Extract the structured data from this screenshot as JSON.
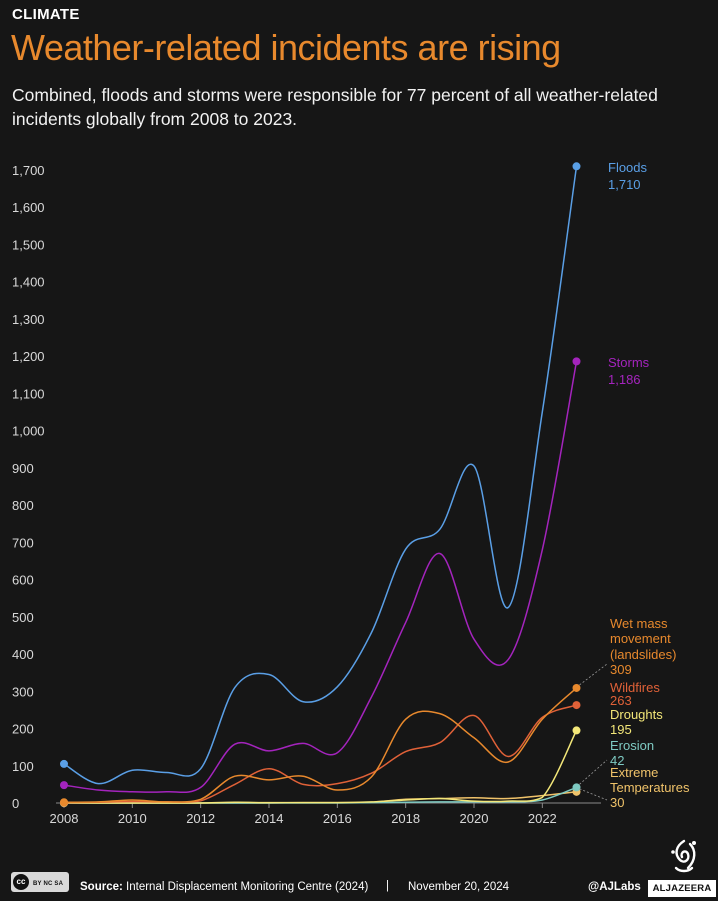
{
  "header": {
    "kicker": "CLIMATE",
    "title": "Weather-related incidents are rising",
    "subtitle": "Combined, floods and storms were responsible for 77 percent of all weather-related incidents globally from 2008 to 2023."
  },
  "chart_data": {
    "type": "line",
    "x": [
      2008,
      2009,
      2010,
      2011,
      2012,
      2013,
      2014,
      2015,
      2016,
      2017,
      2018,
      2019,
      2020,
      2021,
      2022,
      2023
    ],
    "xlim": [
      2008,
      2023.6
    ],
    "ylim": [
      0,
      1700
    ],
    "y_ticks": [
      0,
      100,
      200,
      300,
      400,
      500,
      600,
      700,
      800,
      900,
      1000,
      1100,
      1200,
      1300,
      1400,
      1500,
      1600,
      1700
    ],
    "y_tick_labels": [
      "0",
      "100",
      "200",
      "300",
      "400",
      "500",
      "600",
      "700",
      "800",
      "900",
      "1,000",
      "1,100",
      "1,200",
      "1,300",
      "1,400",
      "1,500",
      "1,600",
      "1,700"
    ],
    "x_ticks": [
      2008,
      2010,
      2012,
      2014,
      2016,
      2018,
      2020,
      2022
    ],
    "x_tick_labels": [
      "2008",
      "2010",
      "2012",
      "2014",
      "2016",
      "2018",
      "2020",
      "2022"
    ],
    "grid": false,
    "series": [
      {
        "name": "Floods",
        "color": "#5a9fe6",
        "end_label": "1,710",
        "values": [
          105,
          52,
          88,
          82,
          92,
          310,
          345,
          272,
          312,
          458,
          682,
          735,
          905,
          525,
          1050,
          1710
        ]
      },
      {
        "name": "Storms",
        "color": "#a424bd",
        "end_label": "1,186",
        "values": [
          48,
          35,
          30,
          30,
          42,
          158,
          140,
          160,
          135,
          285,
          485,
          670,
          440,
          385,
          680,
          1186
        ]
      },
      {
        "name": "Wet mass movement (landslides)",
        "color": "#e8892d",
        "end_label": "309",
        "values": [
          2,
          3,
          8,
          3,
          10,
          72,
          62,
          72,
          35,
          70,
          225,
          240,
          175,
          110,
          225,
          309
        ]
      },
      {
        "name": "Wildfires",
        "color": "#e06138",
        "end_label": "263",
        "values": [
          1,
          2,
          4,
          3,
          6,
          50,
          92,
          50,
          52,
          80,
          138,
          162,
          235,
          125,
          230,
          263
        ]
      },
      {
        "name": "Droughts",
        "color": "#f3e779",
        "end_label": "195",
        "values": [
          0,
          0,
          0,
          0,
          0,
          2,
          1,
          1,
          1,
          3,
          8,
          12,
          5,
          5,
          15,
          195
        ]
      },
      {
        "name": "Erosion",
        "color": "#7ecac2",
        "end_label": "42",
        "values": [
          0,
          0,
          0,
          0,
          0,
          0,
          0,
          0,
          0,
          1,
          2,
          3,
          3,
          3,
          8,
          42
        ]
      },
      {
        "name": "Extreme Temperatures",
        "color": "#f0c36a",
        "end_label": "30",
        "values": [
          0,
          0,
          0,
          0,
          0,
          0,
          0,
          1,
          1,
          2,
          10,
          12,
          14,
          12,
          20,
          30
        ]
      }
    ]
  },
  "labels": {
    "floods_l1": "Floods",
    "storms_l1": "Storms",
    "wetmass_l1": "Wet mass",
    "wetmass_l2": "movement",
    "wetmass_l3": "(landslides)",
    "wildfires_l1": "Wildfires",
    "droughts_l1": "Droughts",
    "erosion_l1": "Erosion",
    "extreme_l1": "Extreme",
    "extreme_l2": "Temperatures"
  },
  "footer": {
    "license": "BY NC SA",
    "source_label": "Source:",
    "source_text": "Internal Displacement Monitoring Centre (2024)",
    "separator": "|",
    "date": "November 20, 2024",
    "handle": "@AJLabs",
    "brand": "ALJAZEERA"
  }
}
